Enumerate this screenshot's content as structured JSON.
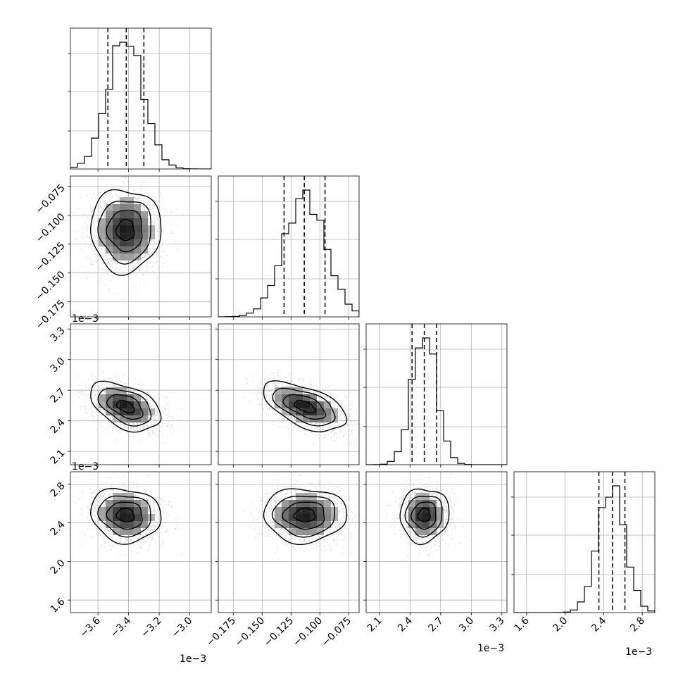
{
  "chart_data": {
    "type": "corner",
    "n_params": 4,
    "grid": true,
    "quantiles": [
      0.16,
      0.5,
      0.84
    ],
    "params": [
      {
        "lim": [
          -3.78,
          -2.86
        ],
        "ticks": [
          -3.6,
          -3.4,
          -3.2,
          -3.0
        ],
        "tick_labels": [
          "−3.6",
          "−3.4",
          "−3.2",
          "−3.0"
        ],
        "offset_text": "1e−3",
        "mean": -3.42,
        "sd": 0.115,
        "quantile_values": [
          -3.535,
          -3.415,
          -3.3
        ]
      },
      {
        "lim": [
          -0.188,
          -0.066
        ],
        "ticks": [
          -0.175,
          -0.15,
          -0.125,
          -0.1,
          -0.075
        ],
        "tick_labels": [
          "−0.175",
          "−0.150",
          "−0.125",
          "−0.100",
          "−0.075"
        ],
        "offset_text": "1e−3",
        "mean": -0.113,
        "sd": 0.018,
        "quantile_values": [
          -0.131,
          -0.1135,
          -0.0955
        ]
      },
      {
        "lim": [
          1.97,
          3.35
        ],
        "ticks": [
          2.1,
          2.4,
          2.7,
          3.0,
          3.3
        ],
        "tick_labels": [
          "2.1",
          "2.4",
          "2.7",
          "3.0",
          "3.3"
        ],
        "offset_text": "1e−3",
        "mean": 2.54,
        "sd": 0.12,
        "quantile_values": [
          2.42,
          2.54,
          2.66
        ]
      },
      {
        "lim": [
          1.47,
          2.93
        ],
        "ticks": [
          1.6,
          2.0,
          2.4,
          2.8
        ],
        "tick_labels": [
          "1.6",
          "2.0",
          "2.4",
          "2.8"
        ],
        "offset_text": "1e−3",
        "mean": 2.48,
        "sd": 0.14,
        "quantile_values": [
          2.35,
          2.49,
          2.62
        ]
      }
    ],
    "correlations": {
      "1-0": 0.0,
      "2-0": -0.45,
      "2-1": -0.55,
      "3-0": -0.1,
      "3-1": 0.0,
      "3-2": 0.05
    }
  }
}
